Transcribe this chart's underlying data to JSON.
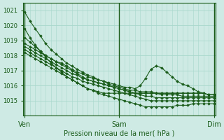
{
  "title": "",
  "xlabel": "Pression niveau de la mer( hPa )",
  "bg_color": "#ceeae4",
  "grid_color": "#a8d8cc",
  "line_color": "#1a5c1a",
  "text_color": "#1a5c1a",
  "ylim": [
    1014.0,
    1021.5
  ],
  "yticks": [
    1015,
    1016,
    1017,
    1018,
    1019,
    1020,
    1021
  ],
  "xtick_labels": [
    "Ven",
    "Sam",
    "Dim"
  ],
  "xtick_positions": [
    0,
    18,
    36
  ],
  "n_points": 37,
  "vline_positions": [
    0,
    18,
    36
  ],
  "series": [
    [
      1020.9,
      1020.3,
      1019.8,
      1019.3,
      1018.8,
      1018.4,
      1018.1,
      1017.8,
      1017.5,
      1017.3,
      1017.1,
      1016.9,
      1016.7,
      1016.6,
      1016.4,
      1016.3,
      1016.1,
      1016.0,
      1015.9,
      1015.8,
      1015.7,
      1015.7,
      1015.6,
      1015.6,
      1015.6,
      1015.5,
      1015.5,
      1015.5,
      1015.5,
      1015.5,
      1015.5,
      1015.5,
      1015.5,
      1015.5,
      1015.5,
      1015.4,
      1015.4
    ],
    [
      1019.8,
      1019.2,
      1018.7,
      1018.3,
      1017.9,
      1017.5,
      1017.2,
      1016.9,
      1016.6,
      1016.4,
      1016.2,
      1016.0,
      1015.8,
      1015.7,
      1015.6,
      1015.5,
      1015.5,
      1015.5,
      1015.5,
      1015.5,
      1015.5,
      1015.5,
      1015.5,
      1015.5,
      1015.5,
      1015.5,
      1015.5,
      1015.5,
      1015.5,
      1015.5,
      1015.5,
      1015.5,
      1015.5,
      1015.5,
      1015.5,
      1015.4,
      1015.4
    ],
    [
      1019.2,
      1018.9,
      1018.6,
      1018.3,
      1018.0,
      1017.8,
      1017.6,
      1017.5,
      1017.3,
      1017.1,
      1016.9,
      1016.8,
      1016.6,
      1016.5,
      1016.4,
      1016.3,
      1016.2,
      1016.1,
      1016.0,
      1015.9,
      1015.9,
      1015.8,
      1016.0,
      1016.5,
      1017.1,
      1017.3,
      1017.2,
      1016.9,
      1016.6,
      1016.3,
      1016.1,
      1016.0,
      1015.8,
      1015.6,
      1015.5,
      1015.4,
      1015.4
    ],
    [
      1018.8,
      1018.6,
      1018.4,
      1018.2,
      1018.0,
      1017.8,
      1017.6,
      1017.4,
      1017.2,
      1017.0,
      1016.8,
      1016.6,
      1016.4,
      1016.3,
      1016.2,
      1016.1,
      1016.0,
      1015.9,
      1015.8,
      1015.7,
      1015.6,
      1015.5,
      1015.5,
      1015.5,
      1015.5,
      1015.5,
      1015.4,
      1015.4,
      1015.4,
      1015.4,
      1015.3,
      1015.3,
      1015.3,
      1015.3,
      1015.3,
      1015.3,
      1015.3
    ],
    [
      1018.6,
      1018.4,
      1018.2,
      1018.0,
      1017.8,
      1017.6,
      1017.4,
      1017.2,
      1017.0,
      1016.8,
      1016.7,
      1016.5,
      1016.4,
      1016.3,
      1016.2,
      1016.1,
      1016.0,
      1015.9,
      1015.8,
      1015.7,
      1015.6,
      1015.5,
      1015.4,
      1015.3,
      1015.3,
      1015.2,
      1015.2,
      1015.2,
      1015.2,
      1015.2,
      1015.2,
      1015.2,
      1015.2,
      1015.2,
      1015.2,
      1015.2,
      1015.2
    ],
    [
      1018.4,
      1018.2,
      1018.0,
      1017.8,
      1017.6,
      1017.4,
      1017.2,
      1017.0,
      1016.8,
      1016.6,
      1016.5,
      1016.3,
      1016.2,
      1016.1,
      1016.0,
      1015.9,
      1015.8,
      1015.7,
      1015.6,
      1015.5,
      1015.4,
      1015.3,
      1015.2,
      1015.1,
      1015.0,
      1015.0,
      1015.0,
      1015.0,
      1015.0,
      1015.0,
      1015.0,
      1015.0,
      1015.0,
      1015.0,
      1015.0,
      1015.0,
      1015.0
    ],
    [
      1018.2,
      1018.0,
      1017.8,
      1017.6,
      1017.4,
      1017.2,
      1017.0,
      1016.8,
      1016.6,
      1016.4,
      1016.2,
      1016.0,
      1015.8,
      1015.7,
      1015.5,
      1015.4,
      1015.3,
      1015.2,
      1015.1,
      1015.0,
      1014.9,
      1014.8,
      1014.7,
      1014.6,
      1014.6,
      1014.6,
      1014.6,
      1014.6,
      1014.6,
      1014.7,
      1014.7,
      1014.7,
      1014.8,
      1014.8,
      1014.8,
      1014.8,
      1014.8
    ]
  ]
}
